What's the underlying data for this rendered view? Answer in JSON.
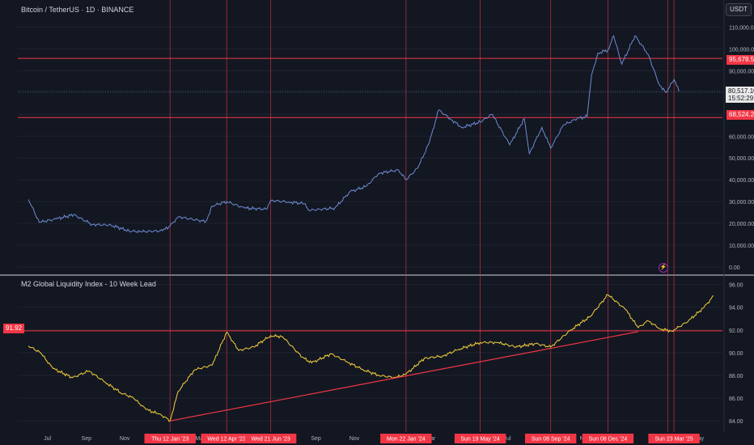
{
  "header": {
    "symbol_title": "Bitcoin / TetherUS · 1D · BINANCE",
    "currency_button": "USDT"
  },
  "indicator": {
    "title": "M2 Global Liquidity Index - 10 Week Lead"
  },
  "colors": {
    "background": "#131722",
    "btc_line": "#6d8bd0",
    "m2_line": "#f5d13b",
    "red_line": "#f23645",
    "grid": "#1f2330",
    "axis_text": "#b2b5be"
  },
  "icons": {
    "lightning": "lightning-icon"
  },
  "markers": {
    "resistance_label": "95,678.53",
    "support_label": "68,524.25",
    "current_price": "80,517.10",
    "countdown": "15:52:29",
    "m2_level_label": "91.92"
  },
  "chart_data": [
    {
      "type": "line",
      "title": "Bitcoin / TetherUS · 1D · BINANCE",
      "series": [
        {
          "name": "Bitcoin / TetherUS",
          "x": [
            "2022-06-01",
            "2022-06-18",
            "2022-07-15",
            "2022-08-12",
            "2022-09-10",
            "2022-10-10",
            "2022-11-08",
            "2022-11-25",
            "2022-12-31",
            "2023-01-12",
            "2023-01-25",
            "2023-03-10",
            "2023-03-20",
            "2023-04-12",
            "2023-05-10",
            "2023-06-15",
            "2023-06-21",
            "2023-07-20",
            "2023-08-15",
            "2023-08-20",
            "2023-10-01",
            "2023-10-25",
            "2023-11-20",
            "2023-12-10",
            "2024-01-10",
            "2024-01-22",
            "2024-02-10",
            "2024-02-28",
            "2024-03-14",
            "2024-04-01",
            "2024-04-20",
            "2024-05-19",
            "2024-06-07",
            "2024-07-05",
            "2024-07-28",
            "2024-08-05",
            "2024-08-25",
            "2024-09-08",
            "2024-09-28",
            "2024-10-20",
            "2024-11-05",
            "2024-11-12",
            "2024-11-22",
            "2024-12-08",
            "2024-12-17",
            "2024-12-30",
            "2025-01-20",
            "2025-02-10",
            "2025-02-27",
            "2025-03-10",
            "2025-03-20",
            "2025-03-23",
            "2025-03-31"
          ],
          "values": [
            31000,
            20500,
            22000,
            24000,
            19500,
            19200,
            16500,
            16200,
            16600,
            18800,
            23000,
            20800,
            28000,
            30000,
            27000,
            26500,
            30500,
            29800,
            29000,
            26000,
            27000,
            34500,
            37000,
            43000,
            44500,
            40000,
            45500,
            57000,
            72000,
            68000,
            64000,
            66500,
            70000,
            56000,
            68000,
            52000,
            64000,
            54500,
            65000,
            68000,
            69000,
            88000,
            98000,
            99500,
            106000,
            93000,
            106000,
            97500,
            84000,
            80000,
            84500,
            86000,
            80517
          ]
        }
      ],
      "ylim": [
        0,
        115000
      ],
      "yticks": [
        "0.00",
        "10,000.00",
        "20,000.00",
        "30,000.00",
        "40,000.00",
        "50,000.00",
        "60,000.00",
        "70,000.00",
        "80,000.00",
        "90,000.00",
        "100,000.00",
        "110,000.00"
      ],
      "horizontal_lines": [
        95678.53,
        68524.25
      ],
      "grid": true
    },
    {
      "type": "line",
      "title": "M2 Global Liquidity Index - 10 Week Lead",
      "series": [
        {
          "name": "M2 Global Liquidity Index - 10 Week Lead",
          "x": [
            "2022-06-01",
            "2022-06-20",
            "2022-07-10",
            "2022-08-10",
            "2022-09-05",
            "2022-10-01",
            "2022-10-25",
            "2022-11-15",
            "2022-12-05",
            "2022-12-25",
            "2023-01-05",
            "2023-01-12",
            "2023-01-25",
            "2023-02-20",
            "2023-03-20",
            "2023-04-12",
            "2023-05-01",
            "2023-05-25",
            "2023-06-21",
            "2023-07-10",
            "2023-08-10",
            "2023-08-25",
            "2023-09-25",
            "2023-10-20",
            "2023-11-15",
            "2023-12-10",
            "2024-01-05",
            "2024-01-22",
            "2024-02-20",
            "2024-03-20",
            "2024-04-15",
            "2024-05-19",
            "2024-06-15",
            "2024-07-15",
            "2024-08-15",
            "2024-09-08",
            "2024-10-10",
            "2024-11-10",
            "2024-12-08",
            "2025-01-05",
            "2025-01-25",
            "2025-02-10",
            "2025-03-01",
            "2025-03-20",
            "2025-03-23",
            "2025-04-15",
            "2025-05-10",
            "2025-05-25"
          ],
          "values": [
            90.6,
            90.0,
            88.6,
            87.8,
            88.4,
            87.4,
            86.5,
            86.0,
            85.0,
            84.6,
            84.3,
            84.0,
            86.6,
            88.5,
            88.9,
            91.8,
            90.2,
            90.5,
            91.5,
            91.4,
            89.6,
            89.1,
            89.9,
            89.2,
            88.5,
            88.0,
            87.8,
            88.1,
            89.5,
            89.7,
            90.3,
            90.9,
            90.9,
            90.5,
            90.8,
            90.5,
            92.0,
            93.2,
            95.1,
            93.8,
            92.2,
            92.8,
            92.1,
            91.9,
            92.0,
            92.8,
            94.0,
            95.0
          ]
        }
      ],
      "ylim": [
        83.3,
        96.4
      ],
      "yticks": [
        "84.00",
        "86.00",
        "88.00",
        "90.00",
        "92.00",
        "94.00",
        "96.00"
      ],
      "horizontal_lines": [
        91.92
      ],
      "trendlines": [
        {
          "from_x": "2023-01-12",
          "from_y": 84.0,
          "to_x": "2025-01-25",
          "to_y": 91.85
        }
      ],
      "grid": true
    }
  ],
  "time_axis": {
    "month_labels": [
      "Jul",
      "Sep",
      "Nov",
      "Mar",
      "Sep",
      "Nov",
      "Mar",
      "Jul",
      "Nov",
      "25",
      "May"
    ],
    "highlighted_dates": [
      "Thu 12 Jan '23",
      "Wed 12 Apr '23",
      "Wed 21 Jun '23",
      "Mon 22 Jan '24",
      "Sun 19 May '24",
      "Sun 08 Sep '24",
      "Sun 08 Dec '24",
      "Thu 2",
      "Sun 23 Mar '25"
    ]
  }
}
